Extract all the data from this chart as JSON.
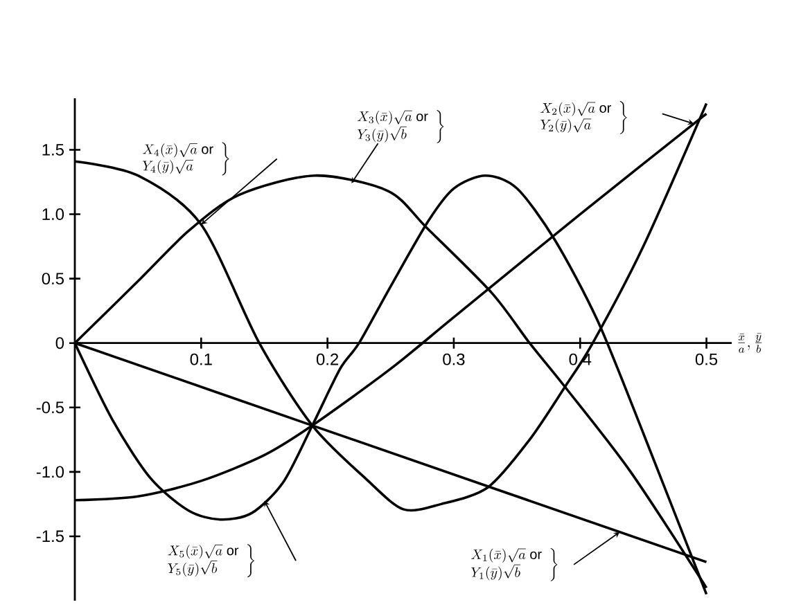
{
  "chart_data": {
    "type": "line",
    "xlabel": "\\frac{\\bar{x}}{a},\\frac{\\bar{y}}{b}",
    "xlim": [
      0,
      0.52
    ],
    "ylim": [
      -2.0,
      1.9
    ],
    "xticks": [
      0.1,
      0.2,
      0.3,
      0.4,
      0.5
    ],
    "yticks": [
      {
        "value": -1.5,
        "label": "-1.5"
      },
      {
        "value": -1.0,
        "label": "-1.0"
      },
      {
        "value": -0.5,
        "label": "-0.5"
      },
      0,
      0.5,
      {
        "value": 1.0,
        "label": "1.0"
      },
      1.5
    ],
    "series": [
      {
        "name": "\\left.\\begin{array}{l}X_{1}(\\bar{x})\\sqrt{a}\\ \\mathrm{or}\\\\ Y_{1}(\\bar{y})\\sqrt{b}\\end{array}\\right\\}",
        "color": "#000000",
        "x": [
          0,
          0.188,
          0.5
        ],
        "values": [
          0,
          -0.64,
          -1.7
        ]
      },
      {
        "name": "\\left.\\begin{array}{l}X_{2}(\\bar{x})\\sqrt{a}\\ \\mathrm{or}\\\\ Y_{2}(\\bar{y})\\sqrt{a}\\end{array}\\right\\}",
        "color": "#000000",
        "x": [
          0,
          0.05,
          0.1,
          0.15,
          0.188,
          0.25,
          0.3,
          0.4,
          0.5
        ],
        "values": [
          -1.22,
          -1.19,
          -1.07,
          -0.87,
          -0.64,
          -0.2,
          0.2,
          1.0,
          1.78
        ]
      },
      {
        "name": "\\left.\\begin{array}{l}X_{3}(\\bar{x})\\sqrt{a}\\ \\mathrm{or}\\\\ Y_{3}(\\bar{y})\\sqrt{b}\\end{array}\\right\\}",
        "color": "#000000",
        "x": [
          0,
          0.05,
          0.09,
          0.13,
          0.19,
          0.248,
          0.279,
          0.33,
          0.36,
          0.388,
          0.44,
          0.5
        ],
        "values": [
          0,
          0.48,
          0.87,
          1.15,
          1.3,
          1.18,
          0.89,
          0.39,
          0,
          -0.34,
          -1.0,
          -1.9
        ]
      },
      {
        "name": "\\left.\\begin{array}{l}X_{4}(\\bar{x})\\sqrt{a}\\ \\mathrm{or}\\\\ Y_{4}(\\bar{y})\\sqrt{a}\\end{array}\\right\\}",
        "color": "#000000",
        "x": [
          0,
          0.05,
          0.1,
          0.146,
          0.188,
          0.23,
          0.26,
          0.29,
          0.327,
          0.36,
          0.388,
          0.41,
          0.45,
          0.5
        ],
        "values": [
          1.41,
          1.3,
          0.92,
          0,
          -0.64,
          -1.05,
          -1.29,
          -1.25,
          -1.12,
          -0.75,
          -0.34,
          0,
          0.75,
          1.86
        ]
      },
      {
        "name": "\\left.\\begin{array}{l}X_{5}(\\bar{x})\\sqrt{a}\\ \\mathrm{or}\\\\ Y_{5}(\\bar{y})\\sqrt{b}\\end{array}\\right\\}",
        "color": "#000000",
        "x": [
          0,
          0.03,
          0.06,
          0.09,
          0.115,
          0.14,
          0.165,
          0.188,
          0.21,
          0.225,
          0.25,
          0.28,
          0.3,
          0.325,
          0.35,
          0.38,
          0.414,
          0.45,
          0.5
        ],
        "values": [
          0,
          -0.6,
          -1.05,
          -1.3,
          -1.37,
          -1.32,
          -1.08,
          -0.64,
          -0.2,
          0,
          0.44,
          0.95,
          1.2,
          1.3,
          1.2,
          0.8,
          0.17,
          -0.7,
          -1.95
        ]
      }
    ]
  }
}
